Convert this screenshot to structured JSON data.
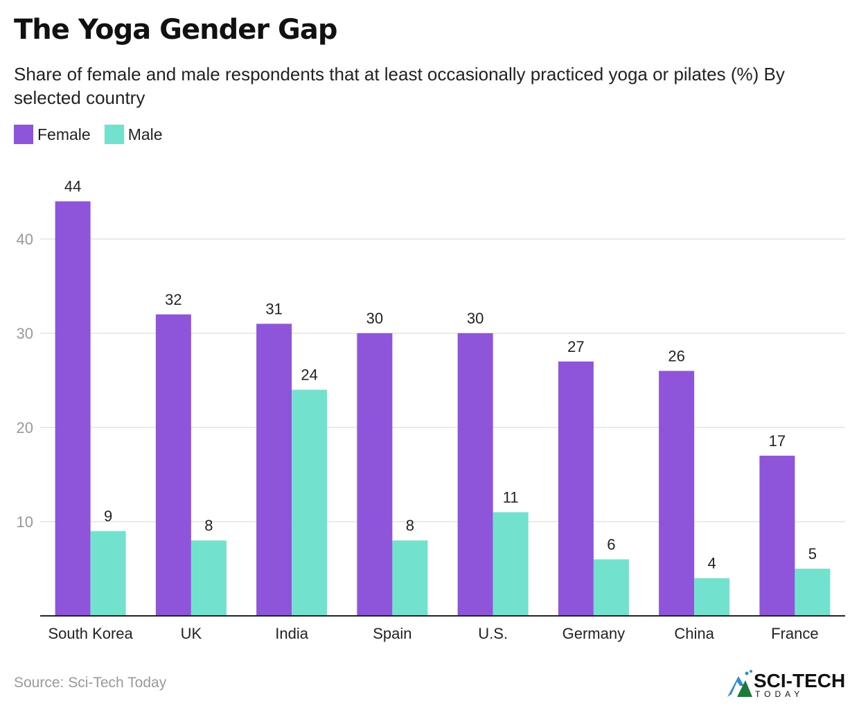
{
  "title": "The Yoga Gender Gap",
  "subtitle": "Share of female and male respondents that at least occasionally practiced yoga or pilates (%) By selected country",
  "source": "Source: Sci-Tech Today",
  "logo": {
    "main": "SCI-TECH",
    "sub": "TODAY"
  },
  "colors": {
    "female": "#8E54D9",
    "male": "#72E2CF",
    "grid": "#e3e3e3",
    "axis": "#222222",
    "tick": "#999999"
  },
  "chart_data": {
    "type": "bar",
    "title": "The Yoga Gender Gap",
    "categories": [
      "South Korea",
      "UK",
      "India",
      "Spain",
      "U.S.",
      "Germany",
      "China",
      "France"
    ],
    "series": [
      {
        "name": "Female",
        "values": [
          44,
          32,
          31,
          30,
          30,
          27,
          26,
          17
        ]
      },
      {
        "name": "Male",
        "values": [
          9,
          8,
          24,
          8,
          11,
          6,
          4,
          5
        ]
      }
    ],
    "yticks": [
      10,
      20,
      30,
      40
    ],
    "ylim": [
      0,
      44
    ],
    "grid": true,
    "legend": "top-left"
  }
}
